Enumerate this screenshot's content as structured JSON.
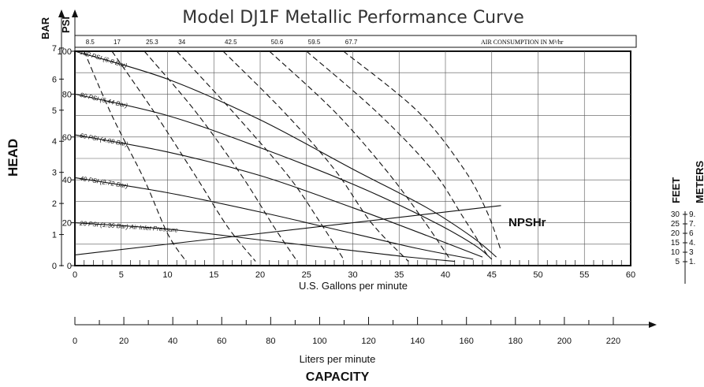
{
  "chart_data": {
    "type": "line",
    "title": "Model DJ1F Metallic Performance Curve",
    "xlabel": "U.S. Gallons per minute",
    "ylabel": "HEAD",
    "xlim": [
      0,
      60
    ],
    "ylim": [
      0,
      100
    ],
    "x_ticks": [
      "0",
      "5",
      "10",
      "15",
      "20",
      "25",
      "30",
      "35",
      "40",
      "45",
      "50",
      "55",
      "60"
    ],
    "psi_axis": {
      "label": "PSI",
      "ticks": [
        "0",
        "20",
        "40",
        "60",
        "80",
        "100"
      ]
    },
    "bar_axis": {
      "label": "BAR",
      "ticks": [
        "0",
        "1",
        "2",
        "3",
        "4",
        "5",
        "6",
        "7"
      ]
    },
    "lpm_axis": {
      "label": "Liters per minute",
      "ticks": [
        "0",
        "20",
        "40",
        "60",
        "80",
        "100",
        "120",
        "140",
        "160",
        "180",
        "200",
        "220"
      ]
    },
    "capacity_label": "CAPACITY",
    "air_consumption": {
      "label": "AIR CONSUMPTION IN M³/hr",
      "values": [
        "8.5",
        "17",
        "25.3",
        "34",
        "42.5",
        "50.6",
        "59.5",
        "67.7"
      ]
    },
    "series": [
      {
        "name": "100 PSI (6.8 Bar)",
        "x": [
          0,
          10,
          20,
          30,
          38,
          43,
          45.5
        ],
        "y": [
          100,
          87,
          68,
          45,
          27,
          13,
          4
        ]
      },
      {
        "name": "80 PSI (5.44 Bar)",
        "x": [
          0,
          10,
          20,
          30,
          38,
          43,
          45
        ],
        "y": [
          80,
          70,
          55,
          38,
          22,
          10,
          3
        ]
      },
      {
        "name": "60 PSI (4.08 Bar)",
        "x": [
          0,
          10,
          20,
          30,
          38,
          44
        ],
        "y": [
          61,
          53,
          42,
          27,
          14,
          4
        ]
      },
      {
        "name": "40 PSI (2.72 Bar)",
        "x": [
          0,
          10,
          20,
          30,
          37,
          43
        ],
        "y": [
          41,
          34,
          25,
          15,
          8,
          3
        ]
      },
      {
        "name": "20 PSI (1.36 Bar) Air Inlet Pressure",
        "x": [
          0,
          10,
          20,
          30,
          36,
          41
        ],
        "y": [
          20,
          17,
          12,
          7,
          4,
          2
        ]
      },
      {
        "name": "NPSHr",
        "x": [
          0,
          46
        ],
        "y": [
          5,
          28
        ]
      }
    ],
    "air_lines": [
      {
        "label": "8.5",
        "x": [
          1,
          4,
          7.5,
          10,
          12
        ],
        "y": [
          100,
          70,
          40,
          15,
          2
        ]
      },
      {
        "label": "17",
        "x": [
          4,
          8.5,
          13,
          16.5,
          19.5
        ],
        "y": [
          100,
          72,
          42,
          18,
          2
        ]
      },
      {
        "label": "25.3",
        "x": [
          7.5,
          13,
          18,
          21.5,
          24
        ],
        "y": [
          100,
          72,
          42,
          18,
          2
        ]
      },
      {
        "label": "34",
        "x": [
          11,
          17,
          23,
          26.5,
          29
        ],
        "y": [
          100,
          72,
          42,
          20,
          3
        ]
      },
      {
        "label": "42.5",
        "x": [
          16,
          22.5,
          28,
          32,
          36
        ],
        "y": [
          100,
          72,
          45,
          20,
          2
        ]
      },
      {
        "label": "50.6",
        "x": [
          21,
          28,
          33.5,
          37.5,
          40.5
        ],
        "y": [
          100,
          72,
          45,
          22,
          3
        ]
      },
      {
        "label": "59.5",
        "x": [
          25,
          32.5,
          38.5,
          42,
          44.5
        ],
        "y": [
          100,
          72,
          45,
          22,
          5
        ]
      },
      {
        "label": "67.7",
        "x": [
          29,
          37,
          42,
          44.5,
          46
        ],
        "y": [
          100,
          72,
          45,
          25,
          7
        ]
      }
    ],
    "npsh_scale": {
      "feet_label": "FEET",
      "meters_label": "METERS",
      "feet_ticks": [
        "30",
        "25",
        "20",
        "15",
        "10",
        "5"
      ],
      "meters_ticks": [
        "9.",
        "7.",
        "6",
        "4.",
        "3",
        "1."
      ]
    },
    "grid": true,
    "legend": "none"
  }
}
